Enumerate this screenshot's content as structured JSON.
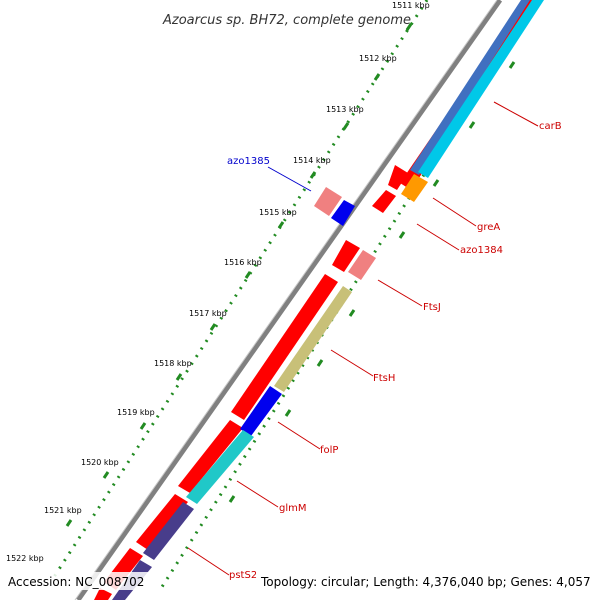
{
  "title": "Azoarcus sp. BH72, complete genome",
  "footer": {
    "accession": "Accession: NC_008702",
    "stats": "Topology: circular; Length: 4,376,040 bp; Genes: 4,057"
  },
  "ticks": [
    "1511 kbp",
    "1512 kbp",
    "1513 kbp",
    "1514 kbp",
    "1515 kbp",
    "1516 kbp",
    "1517 kbp",
    "1518 kbp",
    "1519 kbp",
    "1520 kbp",
    "1521 kbp",
    "1522 kbp"
  ],
  "gene_labels": [
    {
      "text": "azo1385",
      "color": "#0000cc"
    },
    {
      "text": "carB",
      "color": "#cc0000"
    },
    {
      "text": "greA",
      "color": "#cc0000"
    },
    {
      "text": "azo1384",
      "color": "#cc0000"
    },
    {
      "text": "FtsJ",
      "color": "#cc0000"
    },
    {
      "text": "FtsH",
      "color": "#cc0000"
    },
    {
      "text": "folP",
      "color": "#cc0000"
    },
    {
      "text": "glmM",
      "color": "#cc0000"
    },
    {
      "text": "pstS2",
      "color": "#cc0000"
    }
  ],
  "colors": {
    "backbone": "#808080",
    "cds": "#ff0000",
    "cds_light": "#f08080",
    "blue": "#0000ee",
    "carb_blue": "#4070c0",
    "cyan": "#00c8e8",
    "orange": "#ff9900",
    "olive": "#c8c078",
    "teal": "#20c8c8",
    "purple": "#483d8b",
    "tick_green": "#228b22"
  }
}
